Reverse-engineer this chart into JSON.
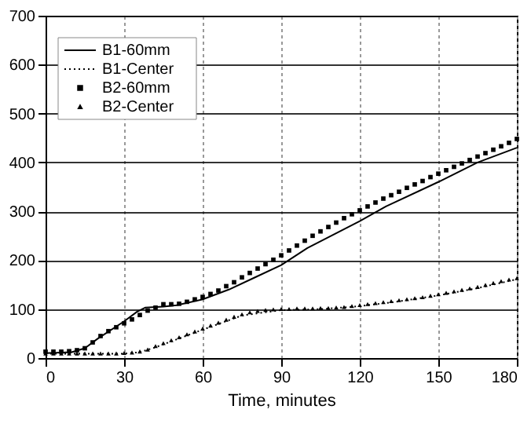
{
  "chart_data": {
    "type": "line",
    "xlabel": "Time, minutes",
    "x": [
      0,
      3,
      6,
      9,
      12,
      15,
      18,
      21,
      24,
      27,
      30,
      33,
      36,
      39,
      42,
      45,
      48,
      51,
      54,
      57,
      60,
      63,
      66,
      69,
      72,
      75,
      78,
      81,
      84,
      87,
      90,
      93,
      96,
      99,
      102,
      105,
      108,
      111,
      114,
      117,
      120,
      123,
      126,
      129,
      132,
      135,
      138,
      141,
      144,
      147,
      150,
      153,
      156,
      159,
      162,
      165,
      168,
      171,
      174,
      177,
      180
    ],
    "series": [
      {
        "name": "B1-60mm",
        "line_style": "solid",
        "color": "#000000",
        "x": [
          0,
          10,
          15,
          20,
          30,
          35,
          38,
          45,
          50,
          60,
          70,
          80,
          90,
          100,
          120,
          130,
          150,
          165,
          180
        ],
        "values": [
          10,
          12,
          20,
          40,
          75,
          95,
          103,
          105,
          108,
          120,
          140,
          165,
          190,
          225,
          280,
          310,
          360,
          400,
          430
        ]
      },
      {
        "name": "B1-Center",
        "line_style": "dotted",
        "color": "#000000",
        "x": [
          0,
          30,
          36,
          42,
          48,
          60,
          75,
          90,
          105,
          120,
          135,
          150,
          165,
          180
        ],
        "values": [
          9,
          9,
          12,
          22,
          34,
          58,
          87,
          98,
          100,
          106,
          116,
          128,
          143,
          161
        ]
      },
      {
        "name": "B2-60mm",
        "type": "scatter",
        "marker": "square",
        "color": "#000000",
        "values": [
          13,
          13,
          13,
          14,
          16,
          20,
          32,
          45,
          55,
          63,
          71,
          79,
          88,
          97,
          103,
          110,
          110,
          111,
          115,
          120,
          125,
          131,
          138,
          147,
          155,
          165,
          174,
          183,
          192,
          201,
          210,
          220,
          230,
          240,
          250,
          259,
          268,
          277,
          286,
          294,
          302,
          310,
          318,
          326,
          333,
          340,
          348,
          355,
          362,
          370,
          377,
          384,
          391,
          398,
          405,
          412,
          419,
          426,
          433,
          440,
          448
        ]
      },
      {
        "name": "B2-Center",
        "type": "scatter",
        "marker": "triangle",
        "color": "#000000",
        "values": [
          9,
          9,
          9,
          9,
          9,
          9,
          9,
          9,
          9,
          9,
          10,
          11,
          13,
          17,
          24,
          30,
          36,
          42,
          48,
          54,
          60,
          66,
          72,
          78,
          84,
          89,
          93,
          96,
          98,
          99,
          100,
          100,
          101,
          101,
          101,
          102,
          102,
          103,
          104,
          106,
          108,
          110,
          112,
          114,
          116,
          118,
          120,
          122,
          124,
          127,
          130,
          133,
          136,
          139,
          142,
          145,
          149,
          153,
          157,
          160,
          163
        ]
      }
    ],
    "xlim": [
      0,
      180
    ],
    "xticks": [
      0,
      30,
      60,
      90,
      120,
      150,
      180
    ],
    "ylim": [
      0,
      700
    ],
    "yticks": [
      0,
      100,
      200,
      300,
      400,
      500,
      600,
      700
    ],
    "grid": true,
    "legend": "top left"
  }
}
